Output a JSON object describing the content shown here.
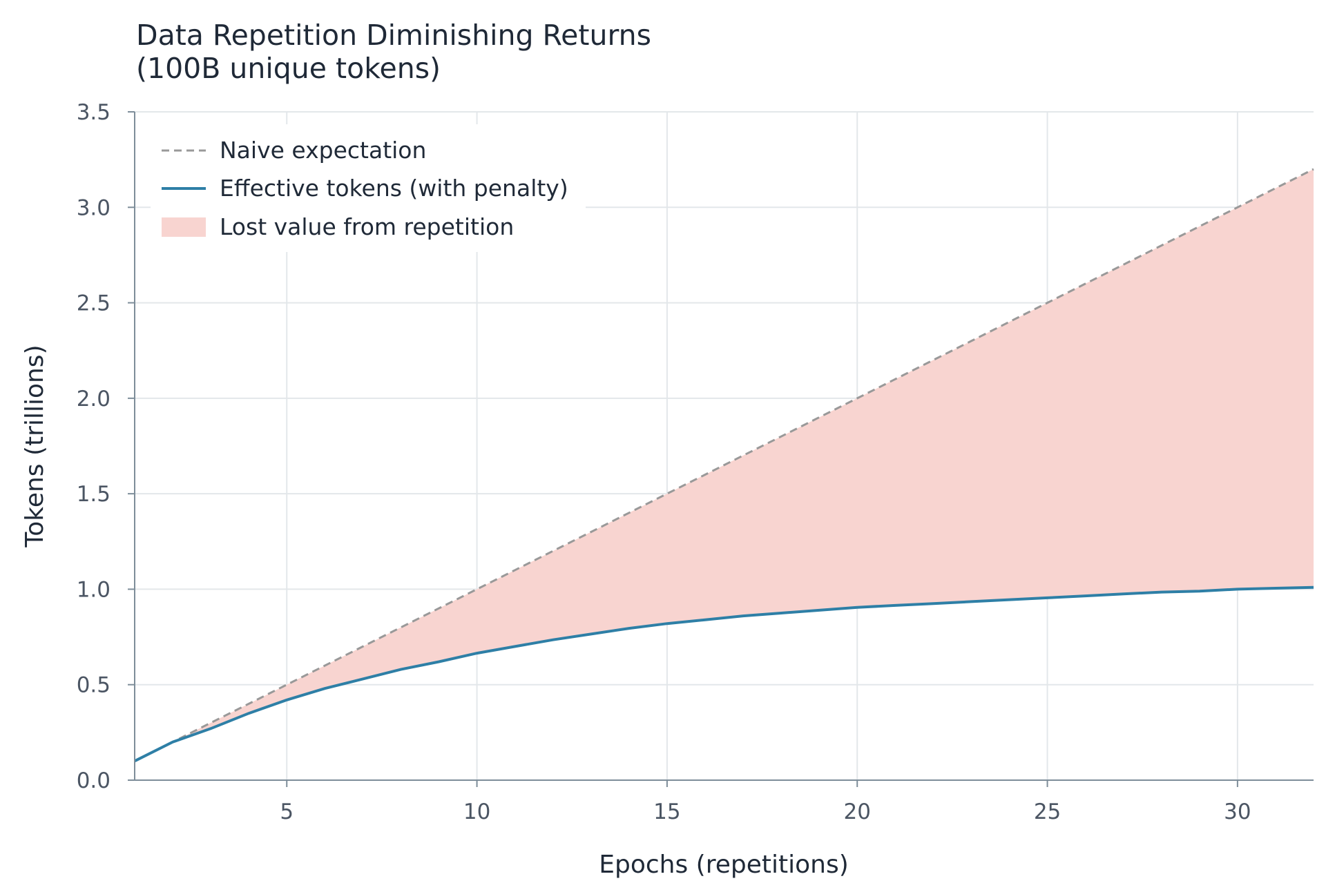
{
  "chart_data": {
    "type": "line",
    "title": "Data Repetition Diminishing Returns",
    "subtitle": "(100B unique tokens)",
    "xlabel": "Epochs (repetitions)",
    "ylabel": "Tokens (trillions)",
    "xlim": [
      1,
      32
    ],
    "ylim": [
      0,
      3.5
    ],
    "xticks": [
      5,
      10,
      15,
      20,
      25,
      30
    ],
    "yticks": [
      0.0,
      0.5,
      1.0,
      1.5,
      2.0,
      2.5,
      3.0,
      3.5
    ],
    "grid": true,
    "legend_position": "top-left",
    "x": [
      1,
      2,
      3,
      4,
      5,
      6,
      7,
      8,
      9,
      10,
      11,
      12,
      13,
      14,
      15,
      16,
      17,
      18,
      19,
      20,
      21,
      22,
      23,
      24,
      25,
      26,
      27,
      28,
      29,
      30,
      31,
      32
    ],
    "series": [
      {
        "name": "Naive expectation",
        "style": "dashed",
        "color": "#999999",
        "values": [
          0.1,
          0.2,
          0.3,
          0.4,
          0.5,
          0.6,
          0.7,
          0.8,
          0.9,
          1.0,
          1.1,
          1.2,
          1.3,
          1.4,
          1.5,
          1.6,
          1.7,
          1.8,
          1.9,
          2.0,
          2.1,
          2.2,
          2.3,
          2.4,
          2.5,
          2.6,
          2.7,
          2.8,
          2.9,
          3.0,
          3.1,
          3.2
        ]
      },
      {
        "name": "Effective tokens (with penalty)",
        "style": "solid",
        "color": "#2e7fa6",
        "values": [
          0.1,
          0.2,
          0.27,
          0.35,
          0.42,
          0.48,
          0.53,
          0.58,
          0.62,
          0.665,
          0.7,
          0.735,
          0.765,
          0.795,
          0.82,
          0.84,
          0.86,
          0.875,
          0.89,
          0.905,
          0.915,
          0.925,
          0.935,
          0.945,
          0.955,
          0.965,
          0.975,
          0.985,
          0.99,
          1.0,
          1.005,
          1.01
        ]
      }
    ],
    "fill_between": {
      "name": "Lost value from repetition",
      "color": "#f8d4d0",
      "upper": "Naive expectation",
      "lower": "Effective tokens (with penalty)"
    }
  }
}
